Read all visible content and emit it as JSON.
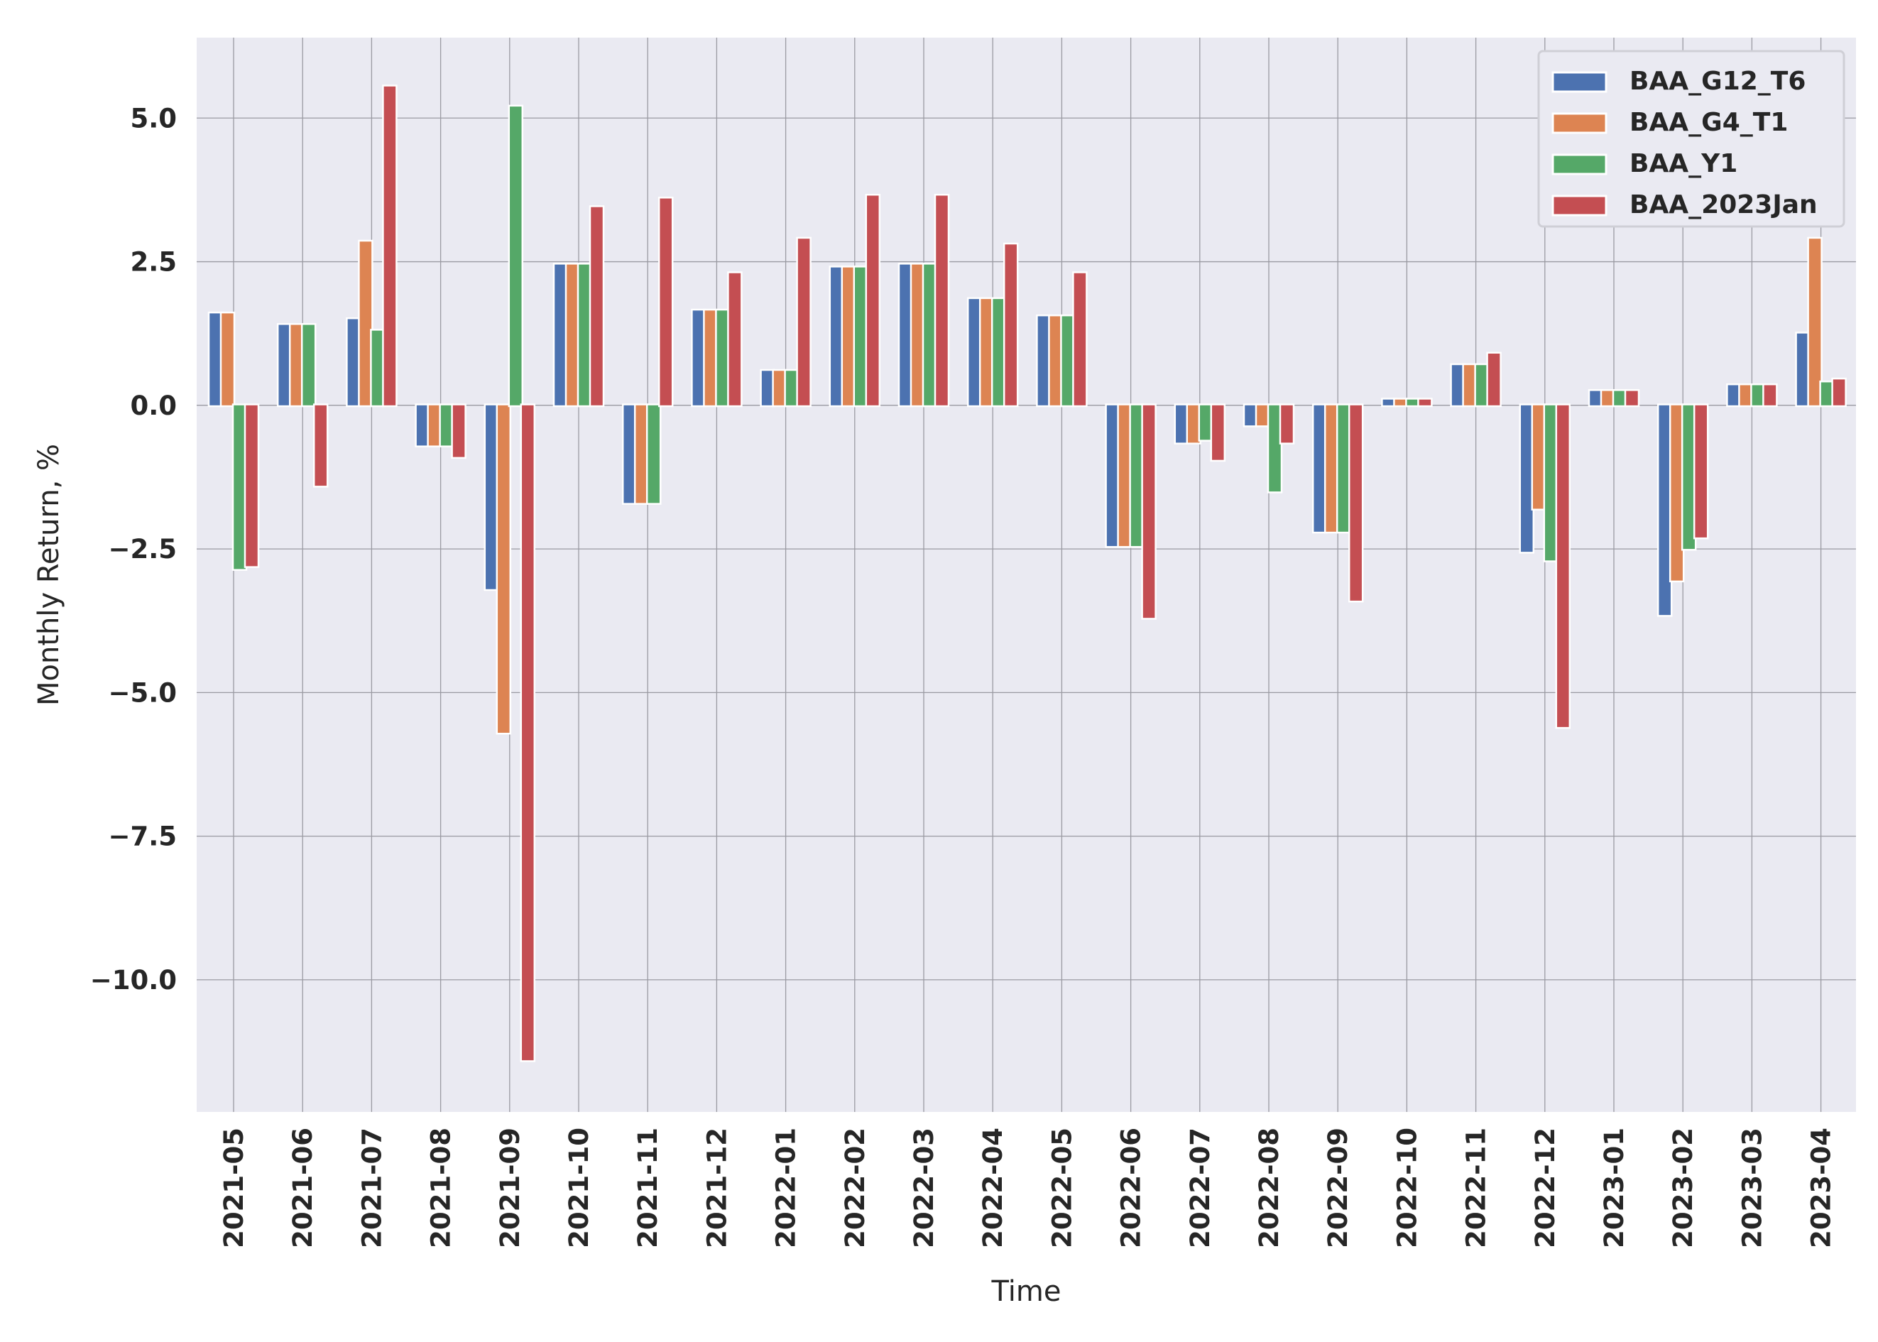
{
  "chart_data": {
    "type": "bar",
    "xlabel": "Time",
    "ylabel": "Monthly Return, %",
    "ylim": [
      -12.3,
      6.4
    ],
    "yticks": [
      5.0,
      2.5,
      0.0,
      -2.5,
      -5.0,
      -7.5,
      -10.0
    ],
    "ytick_labels": [
      "5.0",
      "2.5",
      "0.0",
      "−2.5",
      "−5.0",
      "−7.5",
      "−10.0"
    ],
    "grid": true,
    "legend_position": "top-right",
    "categories": [
      "2021-05",
      "2021-06",
      "2021-07",
      "2021-08",
      "2021-09",
      "2021-10",
      "2021-11",
      "2021-12",
      "2022-01",
      "2022-02",
      "2022-03",
      "2022-04",
      "2022-05",
      "2022-06",
      "2022-07",
      "2022-08",
      "2022-09",
      "2022-10",
      "2022-11",
      "2022-12",
      "2023-01",
      "2023-02",
      "2023-03",
      "2023-04"
    ],
    "series": [
      {
        "name": "BAA_G12_T6",
        "color": "#4c72b0",
        "values": [
          1.6,
          1.4,
          1.5,
          -0.7,
          -3.2,
          2.45,
          -1.7,
          1.65,
          0.6,
          2.4,
          2.45,
          1.85,
          1.55,
          -2.45,
          -0.65,
          -0.35,
          -2.2,
          0.1,
          0.7,
          -2.55,
          0.25,
          -3.65,
          0.35,
          1.25
        ]
      },
      {
        "name": "BAA_G4_T1",
        "color": "#dd8452",
        "values": [
          1.6,
          1.4,
          2.85,
          -0.7,
          -5.7,
          2.45,
          -1.7,
          1.65,
          0.6,
          2.4,
          2.45,
          1.85,
          1.55,
          -2.45,
          -0.65,
          -0.35,
          -2.2,
          0.1,
          0.7,
          -1.8,
          0.25,
          -3.05,
          0.35,
          2.9
        ]
      },
      {
        "name": "BAA_Y1",
        "color": "#55a868",
        "values": [
          -2.85,
          1.4,
          1.3,
          -0.7,
          5.2,
          2.45,
          -1.7,
          1.65,
          0.6,
          2.4,
          2.45,
          1.85,
          1.55,
          -2.45,
          -0.6,
          -1.5,
          -2.2,
          0.1,
          0.7,
          -2.7,
          0.25,
          -2.5,
          0.35,
          0.4
        ]
      },
      {
        "name": "BAA_2023Jan",
        "color": "#c44e52",
        "values": [
          -2.8,
          -1.4,
          5.55,
          -0.9,
          -11.4,
          3.45,
          3.6,
          2.3,
          2.9,
          3.65,
          3.65,
          2.8,
          2.3,
          -3.7,
          -0.95,
          -0.65,
          -3.4,
          0.1,
          0.9,
          -5.6,
          0.25,
          -2.3,
          0.35,
          0.45
        ]
      }
    ]
  }
}
